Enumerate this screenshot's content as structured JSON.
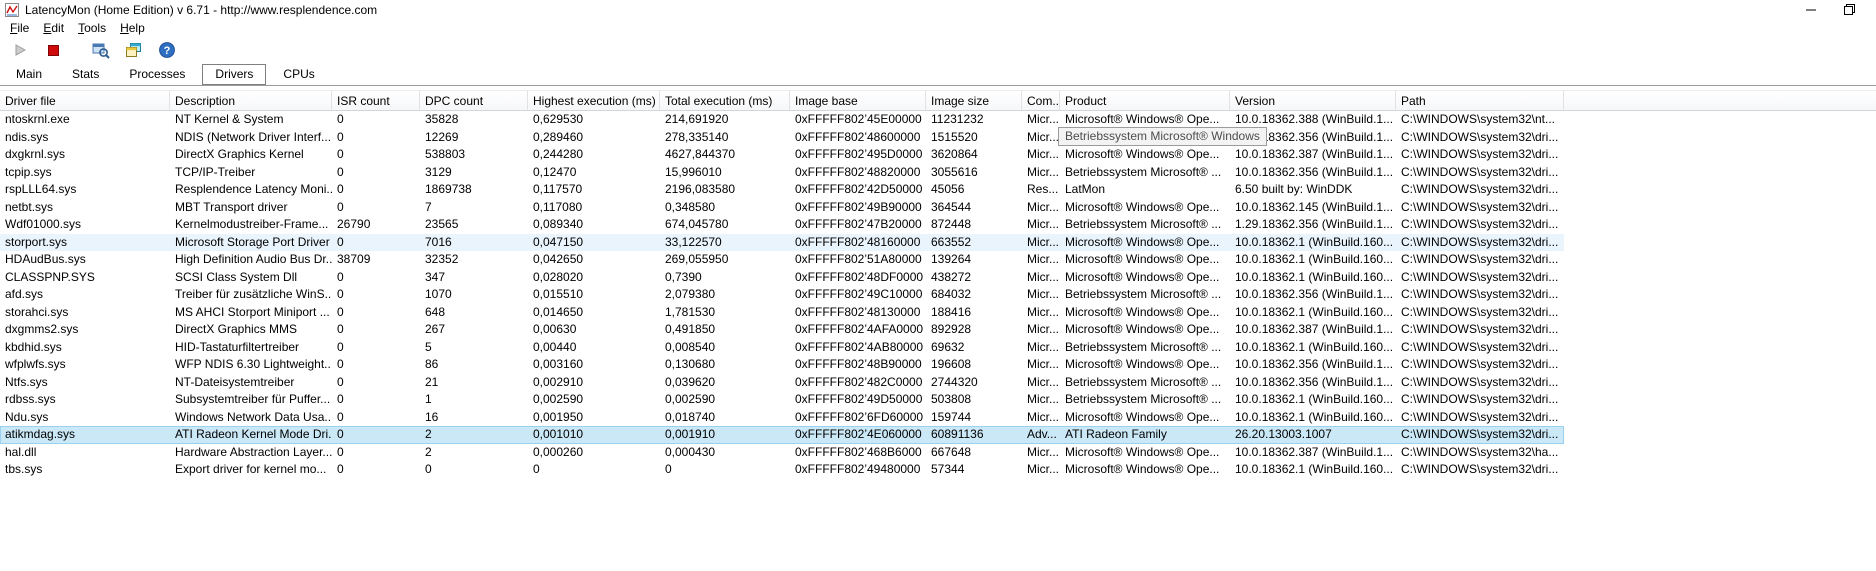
{
  "window": {
    "title": "LatencyMon  (Home Edition)  v 6.71 - http://www.resplendence.com",
    "control_icons": [
      "minimize-icon",
      "restore-icon"
    ]
  },
  "menu": {
    "items": [
      "File",
      "Edit",
      "Tools",
      "Help"
    ]
  },
  "toolbar": {
    "buttons": [
      {
        "name": "start-monitor",
        "icon": "play-icon",
        "enabled": false
      },
      {
        "name": "stop-monitor",
        "icon": "stop-icon",
        "enabled": true
      },
      {
        "name": "analyzer",
        "icon": "analyzer-magnifier-icon",
        "enabled": true
      },
      {
        "name": "copy-report",
        "icon": "copy-windows-icon",
        "enabled": true
      },
      {
        "name": "help",
        "icon": "help-icon",
        "enabled": true
      }
    ]
  },
  "tabs": {
    "items": [
      "Main",
      "Stats",
      "Processes",
      "Drivers",
      "CPUs"
    ],
    "active": "Drivers"
  },
  "tooltip": {
    "text": "Betriebssystem Microsoft® Windows",
    "over_row": "ndis.sys",
    "over_column": "product"
  },
  "colors": {
    "selection_bg": "#cbe8f6",
    "selection_border": "#9bd0ef",
    "hot_bg": "#e9f4fc",
    "stop_red": "#cf0a0a",
    "help_blue": "#2f6fc1"
  },
  "table": {
    "columns": [
      {
        "key": "driver_file",
        "label": "Driver file"
      },
      {
        "key": "description",
        "label": "Description"
      },
      {
        "key": "isr_count",
        "label": "ISR count"
      },
      {
        "key": "dpc_count",
        "label": "DPC count"
      },
      {
        "key": "highest_execution_ms",
        "label": "Highest execution (ms)"
      },
      {
        "key": "total_execution_ms",
        "label": "Total execution (ms)"
      },
      {
        "key": "image_base",
        "label": "Image base"
      },
      {
        "key": "image_size",
        "label": "Image size"
      },
      {
        "key": "company",
        "label": "Com..."
      },
      {
        "key": "product",
        "label": "Product"
      },
      {
        "key": "version",
        "label": "Version"
      },
      {
        "key": "path",
        "label": "Path"
      }
    ],
    "rows": [
      {
        "state": "",
        "cells": [
          "ntoskrnl.exe",
          "NT Kernel & System",
          "0",
          "35828",
          "0,629530",
          "214,691920",
          "0xFFFFF802’45E00000",
          "11231232",
          "Micr...",
          "Microsoft® Windows® Ope...",
          "10.0.18362.388 (WinBuild.1...",
          "C:\\WINDOWS\\system32\\nt..."
        ]
      },
      {
        "state": "",
        "cells": [
          "ndis.sys",
          "NDIS (Network Driver Interf...",
          "0",
          "12269",
          "0,289460",
          "278,335140",
          "0xFFFFF802’48600000",
          "1515520",
          "Micr...",
          "Betriebssystem Microsoft® ...",
          "10.0.18362.356 (WinBuild.1...",
          "C:\\WINDOWS\\system32\\dri..."
        ]
      },
      {
        "state": "",
        "cells": [
          "dxgkrnl.sys",
          "DirectX Graphics Kernel",
          "0",
          "538803",
          "0,244280",
          "4627,844370",
          "0xFFFFF802’495D0000",
          "3620864",
          "Micr...",
          "Microsoft® Windows® Ope...",
          "10.0.18362.387 (WinBuild.1...",
          "C:\\WINDOWS\\system32\\dri..."
        ]
      },
      {
        "state": "",
        "cells": [
          "tcpip.sys",
          "TCP/IP-Treiber",
          "0",
          "3129",
          "0,12470",
          "15,996010",
          "0xFFFFF802’48820000",
          "3055616",
          "Micr...",
          "Betriebssystem Microsoft® ...",
          "10.0.18362.356 (WinBuild.1...",
          "C:\\WINDOWS\\system32\\dri..."
        ]
      },
      {
        "state": "",
        "cells": [
          "rspLLL64.sys",
          "Resplendence Latency Moni...",
          "0",
          "1869738",
          "0,117570",
          "2196,083580",
          "0xFFFFF802’42D50000",
          "45056",
          "Res...",
          "LatMon",
          "6.50 built by: WinDDK",
          "C:\\WINDOWS\\system32\\dri..."
        ]
      },
      {
        "state": "",
        "cells": [
          "netbt.sys",
          "MBT Transport driver",
          "0",
          "7",
          "0,117080",
          "0,348580",
          "0xFFFFF802’49B90000",
          "364544",
          "Micr...",
          "Microsoft® Windows® Ope...",
          "10.0.18362.145 (WinBuild.1...",
          "C:\\WINDOWS\\system32\\dri..."
        ]
      },
      {
        "state": "",
        "cells": [
          "Wdf01000.sys",
          "Kernelmodustreiber-Frame...",
          "26790",
          "23565",
          "0,089340",
          "674,045780",
          "0xFFFFF802’47B20000",
          "872448",
          "Micr...",
          "Betriebssystem Microsoft® ...",
          "1.29.18362.356 (WinBuild.1...",
          "C:\\WINDOWS\\system32\\dri..."
        ]
      },
      {
        "state": "hot",
        "cells": [
          "storport.sys",
          "Microsoft Storage Port Driver",
          "0",
          "7016",
          "0,047150",
          "33,122570",
          "0xFFFFF802’48160000",
          "663552",
          "Micr...",
          "Microsoft® Windows® Ope...",
          "10.0.18362.1 (WinBuild.160...",
          "C:\\WINDOWS\\system32\\dri..."
        ]
      },
      {
        "state": "",
        "cells": [
          "HDAudBus.sys",
          "High Definition Audio Bus Dr...",
          "38709",
          "32352",
          "0,042650",
          "269,055950",
          "0xFFFFF802’51A80000",
          "139264",
          "Micr...",
          "Microsoft® Windows® Ope...",
          "10.0.18362.1 (WinBuild.160...",
          "C:\\WINDOWS\\system32\\dri..."
        ]
      },
      {
        "state": "",
        "cells": [
          "CLASSPNP.SYS",
          "SCSI Class System Dll",
          "0",
          "347",
          "0,028020",
          "0,7390",
          "0xFFFFF802’48DF0000",
          "438272",
          "Micr...",
          "Microsoft® Windows® Ope...",
          "10.0.18362.1 (WinBuild.160...",
          "C:\\WINDOWS\\system32\\dri..."
        ]
      },
      {
        "state": "",
        "cells": [
          "afd.sys",
          "Treiber für zusätzliche WinS...",
          "0",
          "1070",
          "0,015510",
          "2,079380",
          "0xFFFFF802’49C10000",
          "684032",
          "Micr...",
          "Betriebssystem Microsoft® ...",
          "10.0.18362.356 (WinBuild.1...",
          "C:\\WINDOWS\\system32\\dri..."
        ]
      },
      {
        "state": "",
        "cells": [
          "storahci.sys",
          "MS AHCI Storport Miniport ...",
          "0",
          "648",
          "0,014650",
          "1,781530",
          "0xFFFFF802’48130000",
          "188416",
          "Micr...",
          "Microsoft® Windows® Ope...",
          "10.0.18362.1 (WinBuild.160...",
          "C:\\WINDOWS\\system32\\dri..."
        ]
      },
      {
        "state": "",
        "cells": [
          "dxgmms2.sys",
          "DirectX Graphics MMS",
          "0",
          "267",
          "0,00630",
          "0,491850",
          "0xFFFFF802’4AFA0000",
          "892928",
          "Micr...",
          "Microsoft® Windows® Ope...",
          "10.0.18362.387 (WinBuild.1...",
          "C:\\WINDOWS\\system32\\dri..."
        ]
      },
      {
        "state": "",
        "cells": [
          "kbdhid.sys",
          "HID-Tastaturfiltertreiber",
          "0",
          "5",
          "0,00440",
          "0,008540",
          "0xFFFFF802’4AB80000",
          "69632",
          "Micr...",
          "Betriebssystem Microsoft® ...",
          "10.0.18362.1 (WinBuild.160...",
          "C:\\WINDOWS\\system32\\dri..."
        ]
      },
      {
        "state": "",
        "cells": [
          "wfplwfs.sys",
          "WFP NDIS 6.30 Lightweight...",
          "0",
          "86",
          "0,003160",
          "0,130680",
          "0xFFFFF802’48B90000",
          "196608",
          "Micr...",
          "Microsoft® Windows® Ope...",
          "10.0.18362.356 (WinBuild.1...",
          "C:\\WINDOWS\\system32\\dri..."
        ]
      },
      {
        "state": "",
        "cells": [
          "Ntfs.sys",
          "NT-Dateisystemtreiber",
          "0",
          "21",
          "0,002910",
          "0,039620",
          "0xFFFFF802’482C0000",
          "2744320",
          "Micr...",
          "Betriebssystem Microsoft® ...",
          "10.0.18362.356 (WinBuild.1...",
          "C:\\WINDOWS\\system32\\dri..."
        ]
      },
      {
        "state": "",
        "cells": [
          "rdbss.sys",
          "Subsystemtreiber für Puffer...",
          "0",
          "1",
          "0,002590",
          "0,002590",
          "0xFFFFF802’49D50000",
          "503808",
          "Micr...",
          "Betriebssystem Microsoft® ...",
          "10.0.18362.1 (WinBuild.160...",
          "C:\\WINDOWS\\system32\\dri..."
        ]
      },
      {
        "state": "",
        "cells": [
          "Ndu.sys",
          "Windows Network Data Usa...",
          "0",
          "16",
          "0,001950",
          "0,018740",
          "0xFFFFF802’6FD60000",
          "159744",
          "Micr...",
          "Microsoft® Windows® Ope...",
          "10.0.18362.1 (WinBuild.160...",
          "C:\\WINDOWS\\system32\\dri..."
        ]
      },
      {
        "state": "selected",
        "cells": [
          "atikmdag.sys",
          "ATI Radeon Kernel Mode Dri...",
          "0",
          "2",
          "0,001010",
          "0,001910",
          "0xFFFFF802’4E060000",
          "60891136",
          "Adv...",
          "ATI Radeon Family",
          "26.20.13003.1007",
          "C:\\WINDOWS\\system32\\dri..."
        ]
      },
      {
        "state": "",
        "cells": [
          "hal.dll",
          "Hardware Abstraction Layer...",
          "0",
          "2",
          "0,000260",
          "0,000430",
          "0xFFFFF802’468B6000",
          "667648",
          "Micr...",
          "Microsoft® Windows® Ope...",
          "10.0.18362.387 (WinBuild.1...",
          "C:\\WINDOWS\\system32\\ha..."
        ]
      },
      {
        "state": "",
        "cells": [
          "tbs.sys",
          "Export driver for kernel mo...",
          "0",
          "0",
          "0",
          "0",
          "0xFFFFF802’49480000",
          "57344",
          "Micr...",
          "Microsoft® Windows® Ope...",
          "10.0.18362.1 (WinBuild.160...",
          "C:\\WINDOWS\\system32\\dri..."
        ]
      }
    ]
  }
}
